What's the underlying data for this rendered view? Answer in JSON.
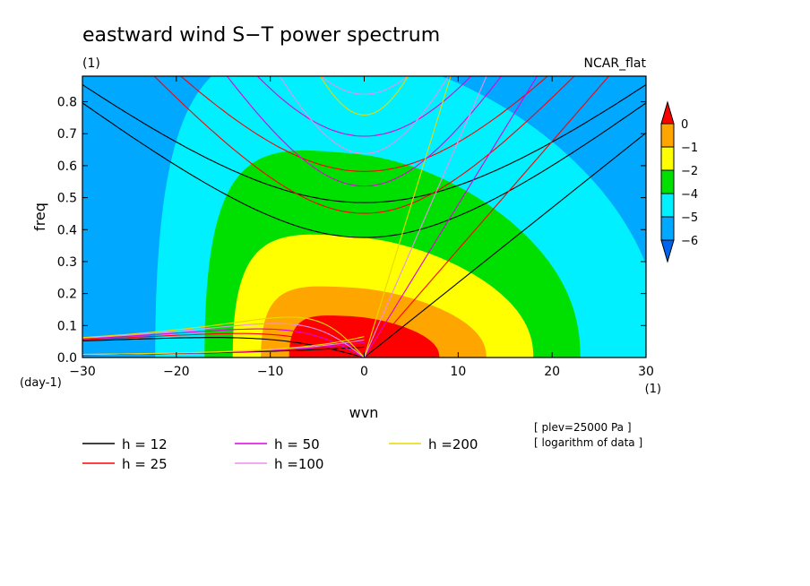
{
  "chart_data": {
    "type": "heatmap",
    "title": "eastward wind S−T power spectrum",
    "units_label": "(1)",
    "top_right_label": "NCAR_flat",
    "xlabel": "wvn",
    "ylabel": "freq",
    "x_unit_label": "(1)",
    "y_unit_label": "(day-1)",
    "xlim": [
      -30,
      30
    ],
    "ylim": [
      0,
      0.88
    ],
    "x_ticks": [
      -30,
      -20,
      -10,
      0,
      10,
      20,
      30
    ],
    "x_tick_labels": [
      "−30",
      "−20",
      "−10",
      "0",
      "10",
      "20",
      "30"
    ],
    "y_ticks": [
      0,
      0.1,
      0.2,
      0.3,
      0.4,
      0.5,
      0.6,
      0.7,
      0.8
    ],
    "y_tick_labels": [
      "0.0",
      "0.1",
      "0.2",
      "0.3",
      "0.4",
      "0.5",
      "0.6",
      "0.7",
      "0.8"
    ],
    "contour_fill": {
      "center": [
        -2,
        0
      ],
      "levels": [
        {
          "name": "-5",
          "color": "#00a8ff",
          "ax": 60,
          "ay": 1.6
        },
        {
          "name": "-4",
          "color": "#00f0ff",
          "ax": 27,
          "ay": 0.95
        },
        {
          "name": "-2",
          "color": "#00e000",
          "ax": 20,
          "ay": 0.64
        },
        {
          "name": "-1",
          "color": "#ffff00",
          "ax": 16,
          "ay": 0.38
        },
        {
          "name": "0",
          "color": "#ffa500",
          "ax": 12,
          "ay": 0.22
        },
        {
          "name": "red",
          "color": "#ff0000",
          "ax": 8,
          "ay": 0.13
        }
      ],
      "background_color": "#0082ff",
      "low_region_color": "#0064f0"
    },
    "colorbar": {
      "labels": [
        "0",
        "−1",
        "−2",
        "−4",
        "−5",
        "−6"
      ],
      "colors": [
        "#ff0000",
        "#ffa500",
        "#ffff00",
        "#00e000",
        "#00f0ff",
        "#00a8ff",
        "#0064f0"
      ]
    },
    "dispersion_curves": [
      {
        "name": "h = 12",
        "color": "#000000",
        "equiv_depth": 12
      },
      {
        "name": "h = 25",
        "color": "#ff0000",
        "equiv_depth": 25
      },
      {
        "name": "h = 50",
        "color": "#e000e0",
        "equiv_depth": 50
      },
      {
        "name": "h =100",
        "color": "#e890e8",
        "equiv_depth": 100
      },
      {
        "name": "h =200",
        "color": "#e8d800",
        "equiv_depth": 200
      }
    ],
    "annotations": [
      "[ plev=25000 Pa ]",
      "[ logarithm of data ]"
    ]
  }
}
